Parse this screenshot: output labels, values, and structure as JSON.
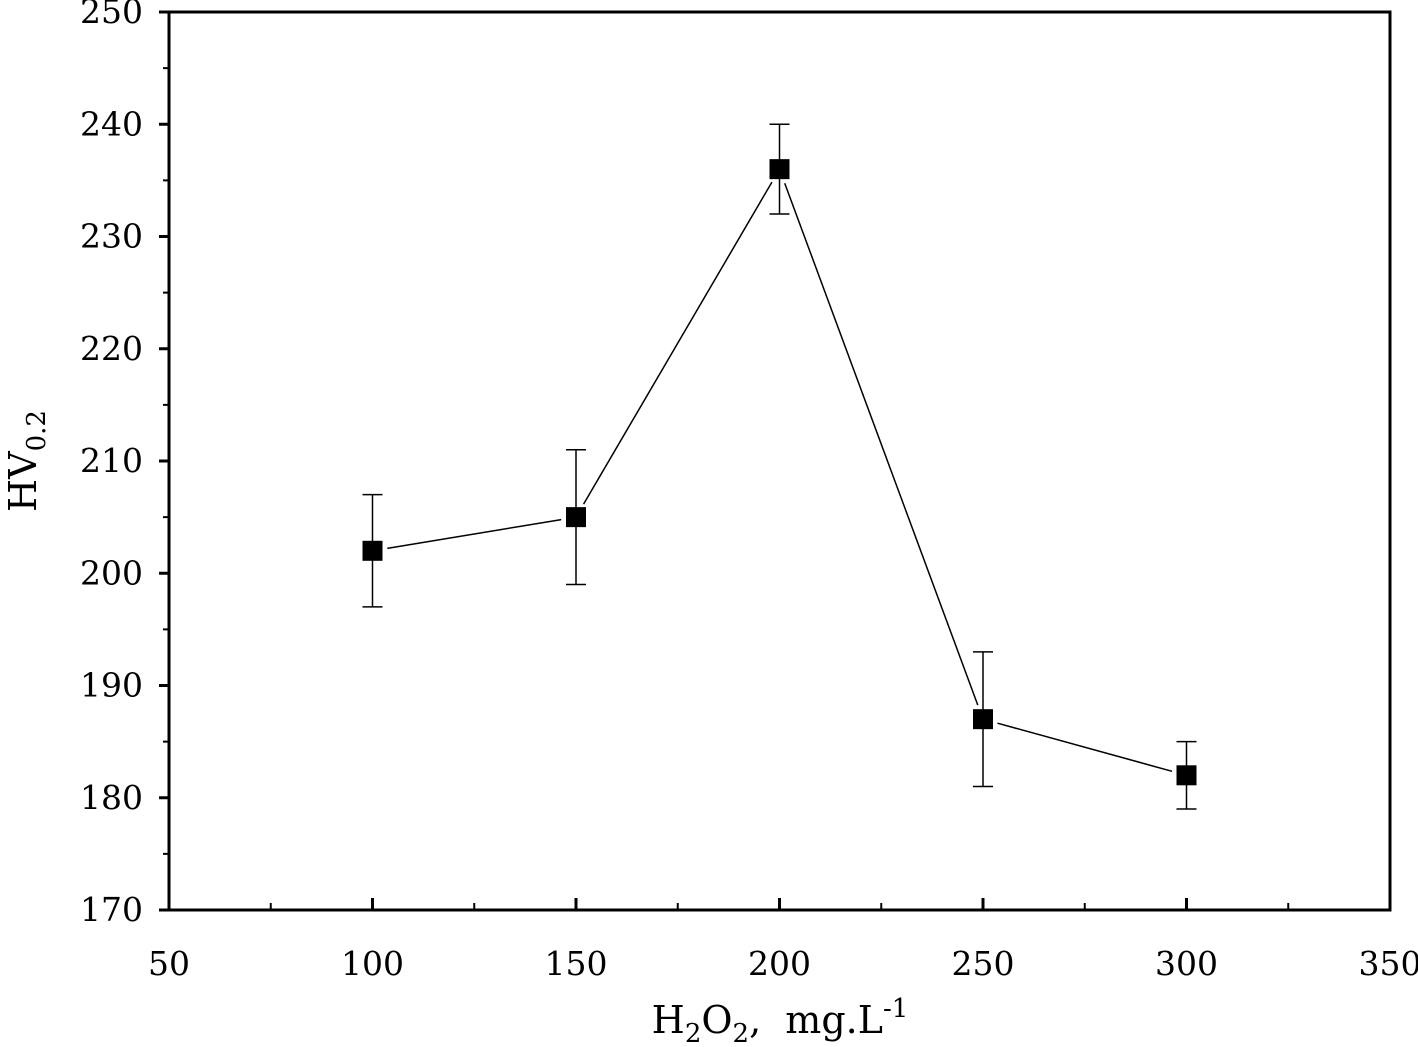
{
  "chart_data": {
    "type": "scatter",
    "xlabel": {
      "prefix": "H",
      "sub1": "2",
      "mid": "O",
      "sub2": "2",
      "suffix": ",  mg.L",
      "sup": "-1"
    },
    "ylabel": {
      "main": "HV",
      "sub": "0.2"
    },
    "xlim": [
      50,
      350
    ],
    "ylim": [
      170,
      250
    ],
    "x_ticks": [
      "50",
      "100",
      "150",
      "200",
      "250",
      "300",
      "350"
    ],
    "y_ticks": [
      "170",
      "180",
      "190",
      "200",
      "210",
      "220",
      "230",
      "240",
      "250"
    ],
    "grid": false,
    "legend": "none",
    "series": [
      {
        "points": [
          {
            "x": 100,
            "y": 202,
            "err_low": 197,
            "err_high": 207
          },
          {
            "x": 150,
            "y": 205,
            "err_low": 199,
            "err_high": 211
          },
          {
            "x": 200,
            "y": 236,
            "err_low": 232,
            "err_high": 240
          },
          {
            "x": 250,
            "y": 187,
            "err_low": 181,
            "err_high": 193
          },
          {
            "x": 300,
            "y": 182,
            "err_low": 179,
            "err_high": 185
          }
        ]
      }
    ],
    "colors": {
      "line": "#000000",
      "marker": "#000000"
    }
  }
}
